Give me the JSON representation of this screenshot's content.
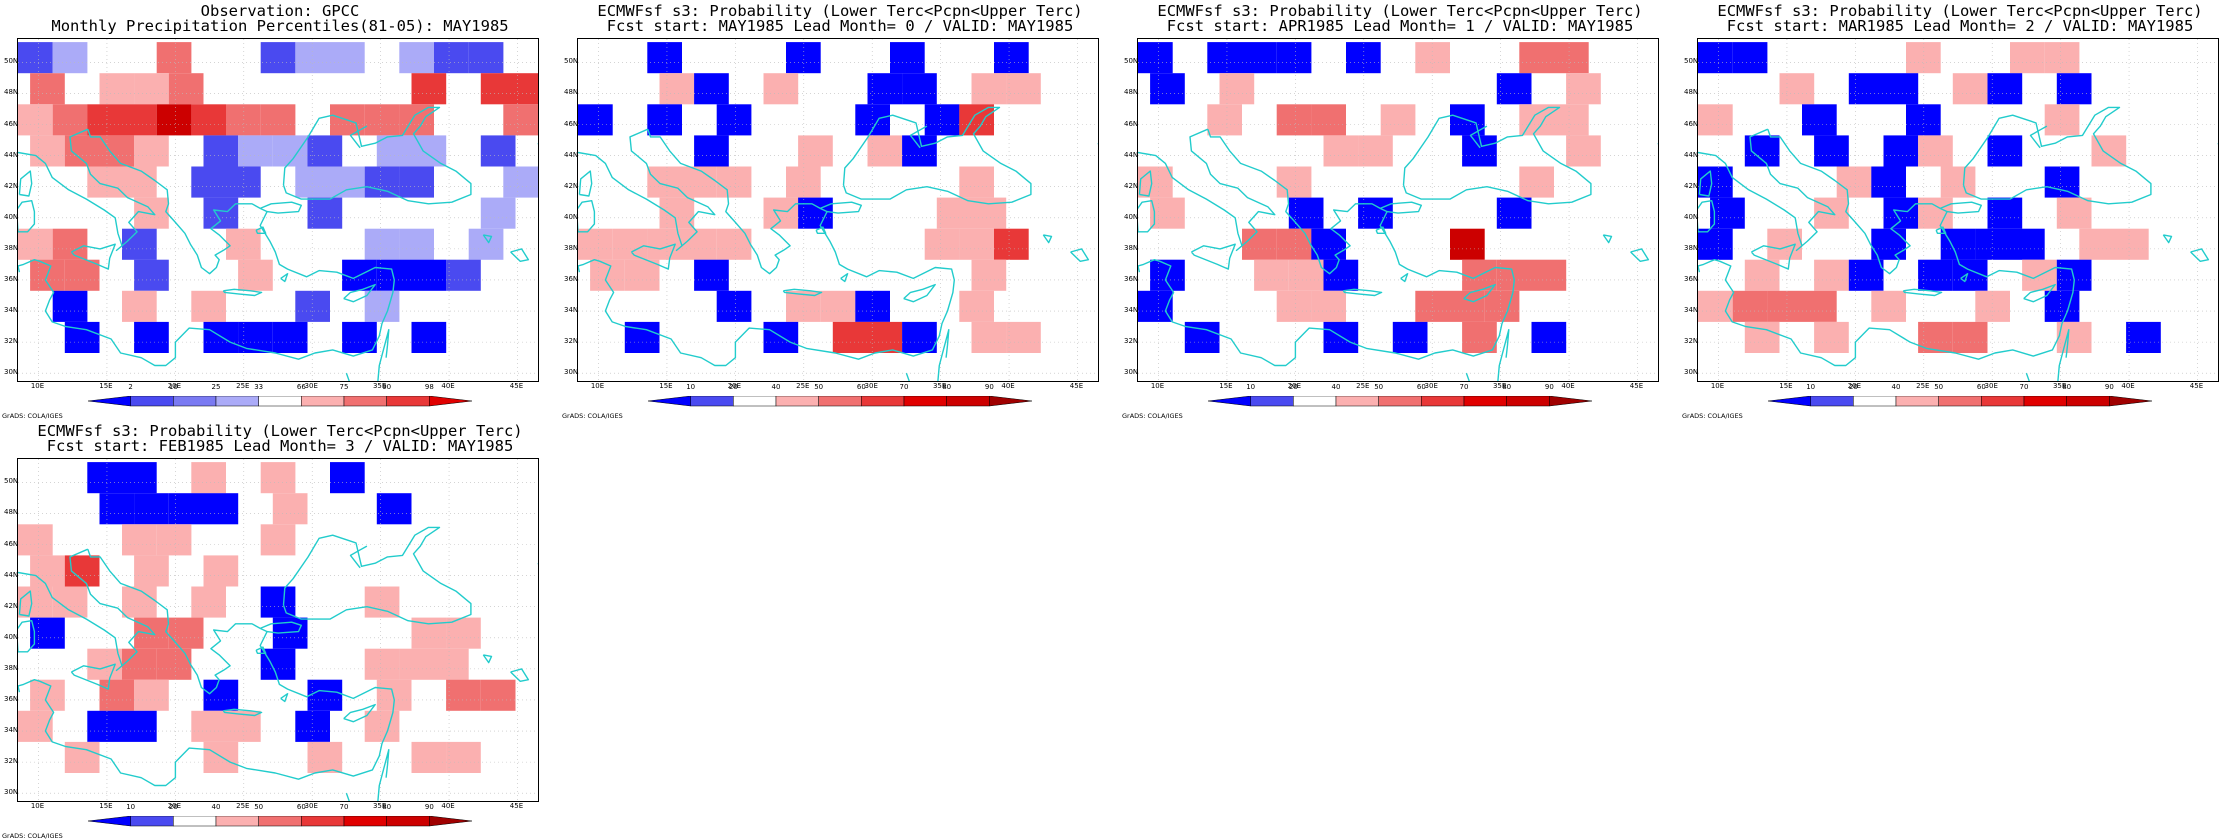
{
  "grads_credit": "GrADS: COLA/IGES",
  "lat_labels": [
    "50N",
    "48N",
    "46N",
    "44N",
    "42N",
    "40N",
    "38N",
    "36N",
    "34N",
    "32N",
    "30N"
  ],
  "lon_labels": [
    "10E",
    "15E",
    "20E",
    "25E",
    "30E",
    "35E",
    "40E",
    "45E"
  ],
  "lon_range": [
    8.5,
    46.5
  ],
  "lat_range": [
    29.5,
    51.5
  ],
  "colors": {
    "coast": "#22cccc",
    "grid": "#bbbbbb"
  },
  "panels": [
    {
      "title1": "Observation: GPCC",
      "title2": "Monthly Precipitation Percentiles(81-05): MAY1985",
      "colorbar": {
        "labels": [
          "2",
          "10",
          "25",
          "33",
          "66",
          "75",
          "90",
          "98"
        ],
        "colors": [
          "#0000ff",
          "#4a4af0",
          "#7a7af2",
          "#ababf8",
          "#ffffff",
          "#fbb0b0",
          "#f07070",
          "#e83838",
          "#e00000"
        ]
      },
      "grid_rows": [
        "...3...3.31..........",
        "3.2..3.........",
        "",
        ""
      ],
      "cells": "obs"
    },
    {
      "title1": "ECMWFsf s3: Probability (Lower Terc<Pcpn<Upper Terc)",
      "title2": "Fcst start: MAY1985  Lead Month= 0 / VALID: MAY1985",
      "colorbar": {
        "labels": [
          "10",
          "20",
          "40",
          "50",
          "60",
          "70",
          "80",
          "90"
        ],
        "colors": [
          "#0000ff",
          "#4a4af0",
          "#ffffff",
          "#fbb0b0",
          "#f07070",
          "#e83838",
          "#e00000",
          "#cc0000",
          "#a00000"
        ]
      },
      "cells": "f0"
    },
    {
      "title1": "ECMWFsf s3: Probability (Lower Terc<Pcpn<Upper Terc)",
      "title2": "Fcst start: APR1985  Lead Month= 1 / VALID: MAY1985",
      "colorbar": {
        "labels": [
          "10",
          "20",
          "40",
          "50",
          "60",
          "70",
          "80",
          "90"
        ],
        "colors": [
          "#0000ff",
          "#4a4af0",
          "#ffffff",
          "#fbb0b0",
          "#f07070",
          "#e83838",
          "#e00000",
          "#cc0000",
          "#a00000"
        ]
      },
      "cells": "f1"
    },
    {
      "title1": "ECMWFsf s3: Probability (Lower Terc<Pcpn<Upper Terc)",
      "title2": "Fcst start: MAR1985  Lead Month= 2 / VALID: MAY1985",
      "colorbar": {
        "labels": [
          "10",
          "20",
          "40",
          "50",
          "60",
          "70",
          "80",
          "90"
        ],
        "colors": [
          "#0000ff",
          "#4a4af0",
          "#ffffff",
          "#fbb0b0",
          "#f07070",
          "#e83838",
          "#e00000",
          "#cc0000",
          "#a00000"
        ]
      },
      "cells": "f2"
    },
    {
      "title1": "ECMWFsf s3: Probability (Lower Terc<Pcpn<Upper Terc)",
      "title2": "Fcst start: FEB1985  Lead Month= 3 / VALID: MAY1985",
      "colorbar": {
        "labels": [
          "10",
          "20",
          "40",
          "50",
          "60",
          "70",
          "80",
          "90"
        ],
        "colors": [
          "#0000ff",
          "#4a4af0",
          "#ffffff",
          "#fbb0b0",
          "#f07070",
          "#e83838",
          "#e00000",
          "#cc0000",
          "#a00000"
        ]
      },
      "cells": "f3"
    }
  ],
  "grid_cell_categories": {
    "obs": [
      "23..6..233.322.",
      "6.556.....47.77",
      "56778766.666..67",
      "5665.2332.33.2",
      "..55.22.3322..3",
      "...5.2..2....3",
      "56.2..5...33.3",
      "66.2..5..1112",
      ".1.5.5..2.3..",
      ".1.1.111.1.1."
    ],
    "f0": [
      "..1...1..1..1",
      "..51.5..11.55",
      "1.1.1...1.17.",
      "...1..5.51...",
      "..555.5....5.",
      "..5..51...55.",
      "55555.....557",
      "55.1.......5.",
      "....1.551..5",
      ".1...1.771.55"
    ],
    "f1": [
      "1.111.1.5..66",
      "1.5.......1.5",
      "..5.66.5.1.55",
      ".....55..1..5",
      "5...5......5",
      "5...1.1...1..",
      "...661...8...",
      "1..551...666.",
      "1...55..666.",
      ".1...1.1.6.1"
    ],
    "f2": [
      "11....5..55.",
      "..5.11.51.1.",
      "5..1..1...5..",
      ".1.1.15.1..5",
      "1...51.5..1.",
      "1..5.15.1.5.",
      "1.5..1.111.55",
      ".5.51.11.51..",
      "5666.5..5.1.",
      ".5.5..66..5.1"
    ],
    "f3": [
      "..11.5.5.1..",
      "..1111.5..1.",
      "5..55..5....",
      "57.5.5......",
      "55.5.5.1..5.",
      "1..66..1...55",
      "..566..1..555",
      "5.65.1..1.5.66",
      "5.11.55.1.5.",
      ".5...5..5..55"
    ]
  }
}
